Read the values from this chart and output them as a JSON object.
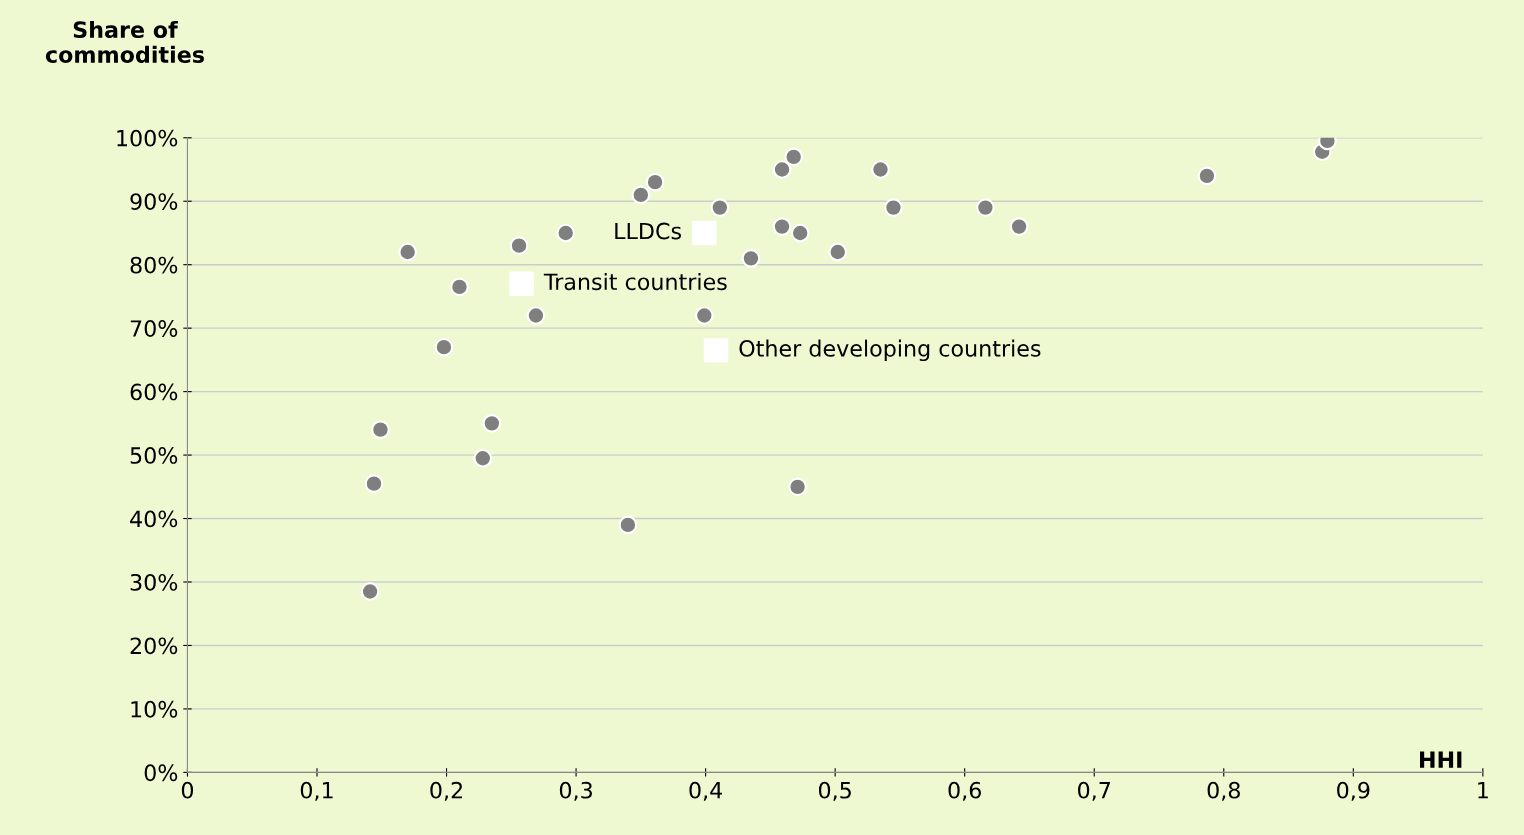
{
  "chart_data": {
    "type": "scatter",
    "xlabel": "HHI",
    "ylabel": "Share of commodities",
    "xlim": [
      0,
      1
    ],
    "ylim": [
      0,
      100
    ],
    "xticks": [
      0,
      {
        "value": 0.1,
        "label": "0,1"
      },
      {
        "value": 0.2,
        "label": "0,2"
      },
      {
        "value": 0.3,
        "label": "0,3"
      },
      {
        "value": 0.4,
        "label": "0,4"
      },
      {
        "value": 0.5,
        "label": "0,5"
      },
      {
        "value": 0.6,
        "label": "0,6"
      },
      {
        "value": 0.7,
        "label": "0,7"
      },
      {
        "value": 0.8,
        "label": "0,8"
      },
      {
        "value": 0.9,
        "label": "0,9"
      },
      1
    ],
    "yticks": [
      {
        "value": 0,
        "label": "0%"
      },
      {
        "value": 10,
        "label": "10%"
      },
      {
        "value": 20,
        "label": "20%"
      },
      {
        "value": 30,
        "label": "30%"
      },
      {
        "value": 40,
        "label": "40%"
      },
      {
        "value": 50,
        "label": "50%"
      },
      {
        "value": 60,
        "label": "60%"
      },
      {
        "value": 70,
        "label": "70%"
      },
      {
        "value": 80,
        "label": "80%"
      },
      {
        "value": 90,
        "label": "90%"
      },
      {
        "value": 100,
        "label": "100%"
      }
    ],
    "grid": "y",
    "legend": false,
    "marker": "circle",
    "series": [
      {
        "color": "#7f7f7f",
        "x": [
          0.17,
          0.21,
          0.198,
          0.149,
          0.144,
          0.141,
          0.228,
          0.235,
          0.256,
          0.269,
          0.292,
          0.34,
          0.35,
          0.361,
          0.411,
          0.399,
          0.435,
          0.459,
          0.459,
          0.468,
          0.473,
          0.471,
          0.502,
          0.535,
          0.545,
          0.616,
          0.642,
          0.787,
          0.876,
          0.88
        ],
        "values": [
          82,
          76.5,
          67,
          54,
          45.5,
          28.5,
          49.5,
          55,
          83,
          72,
          85,
          39,
          91,
          93,
          89,
          72,
          81,
          86,
          95,
          97,
          85,
          45,
          82,
          95,
          89,
          89,
          86,
          94,
          97.8,
          99.5
        ]
      },
      {
        "name": "LLDCs",
        "color": "#ffffff",
        "marker": "square",
        "x": [
          0.399
        ],
        "values": [
          85
        ]
      },
      {
        "name": "Transit countries",
        "color": "#ffffff",
        "marker": "square",
        "x": [
          0.258
        ],
        "values": [
          77
        ]
      },
      {
        "name": "Other developing countries",
        "color": "#ffffff",
        "marker": "square",
        "x": [
          0.408
        ],
        "values": [
          66.5
        ]
      }
    ]
  }
}
